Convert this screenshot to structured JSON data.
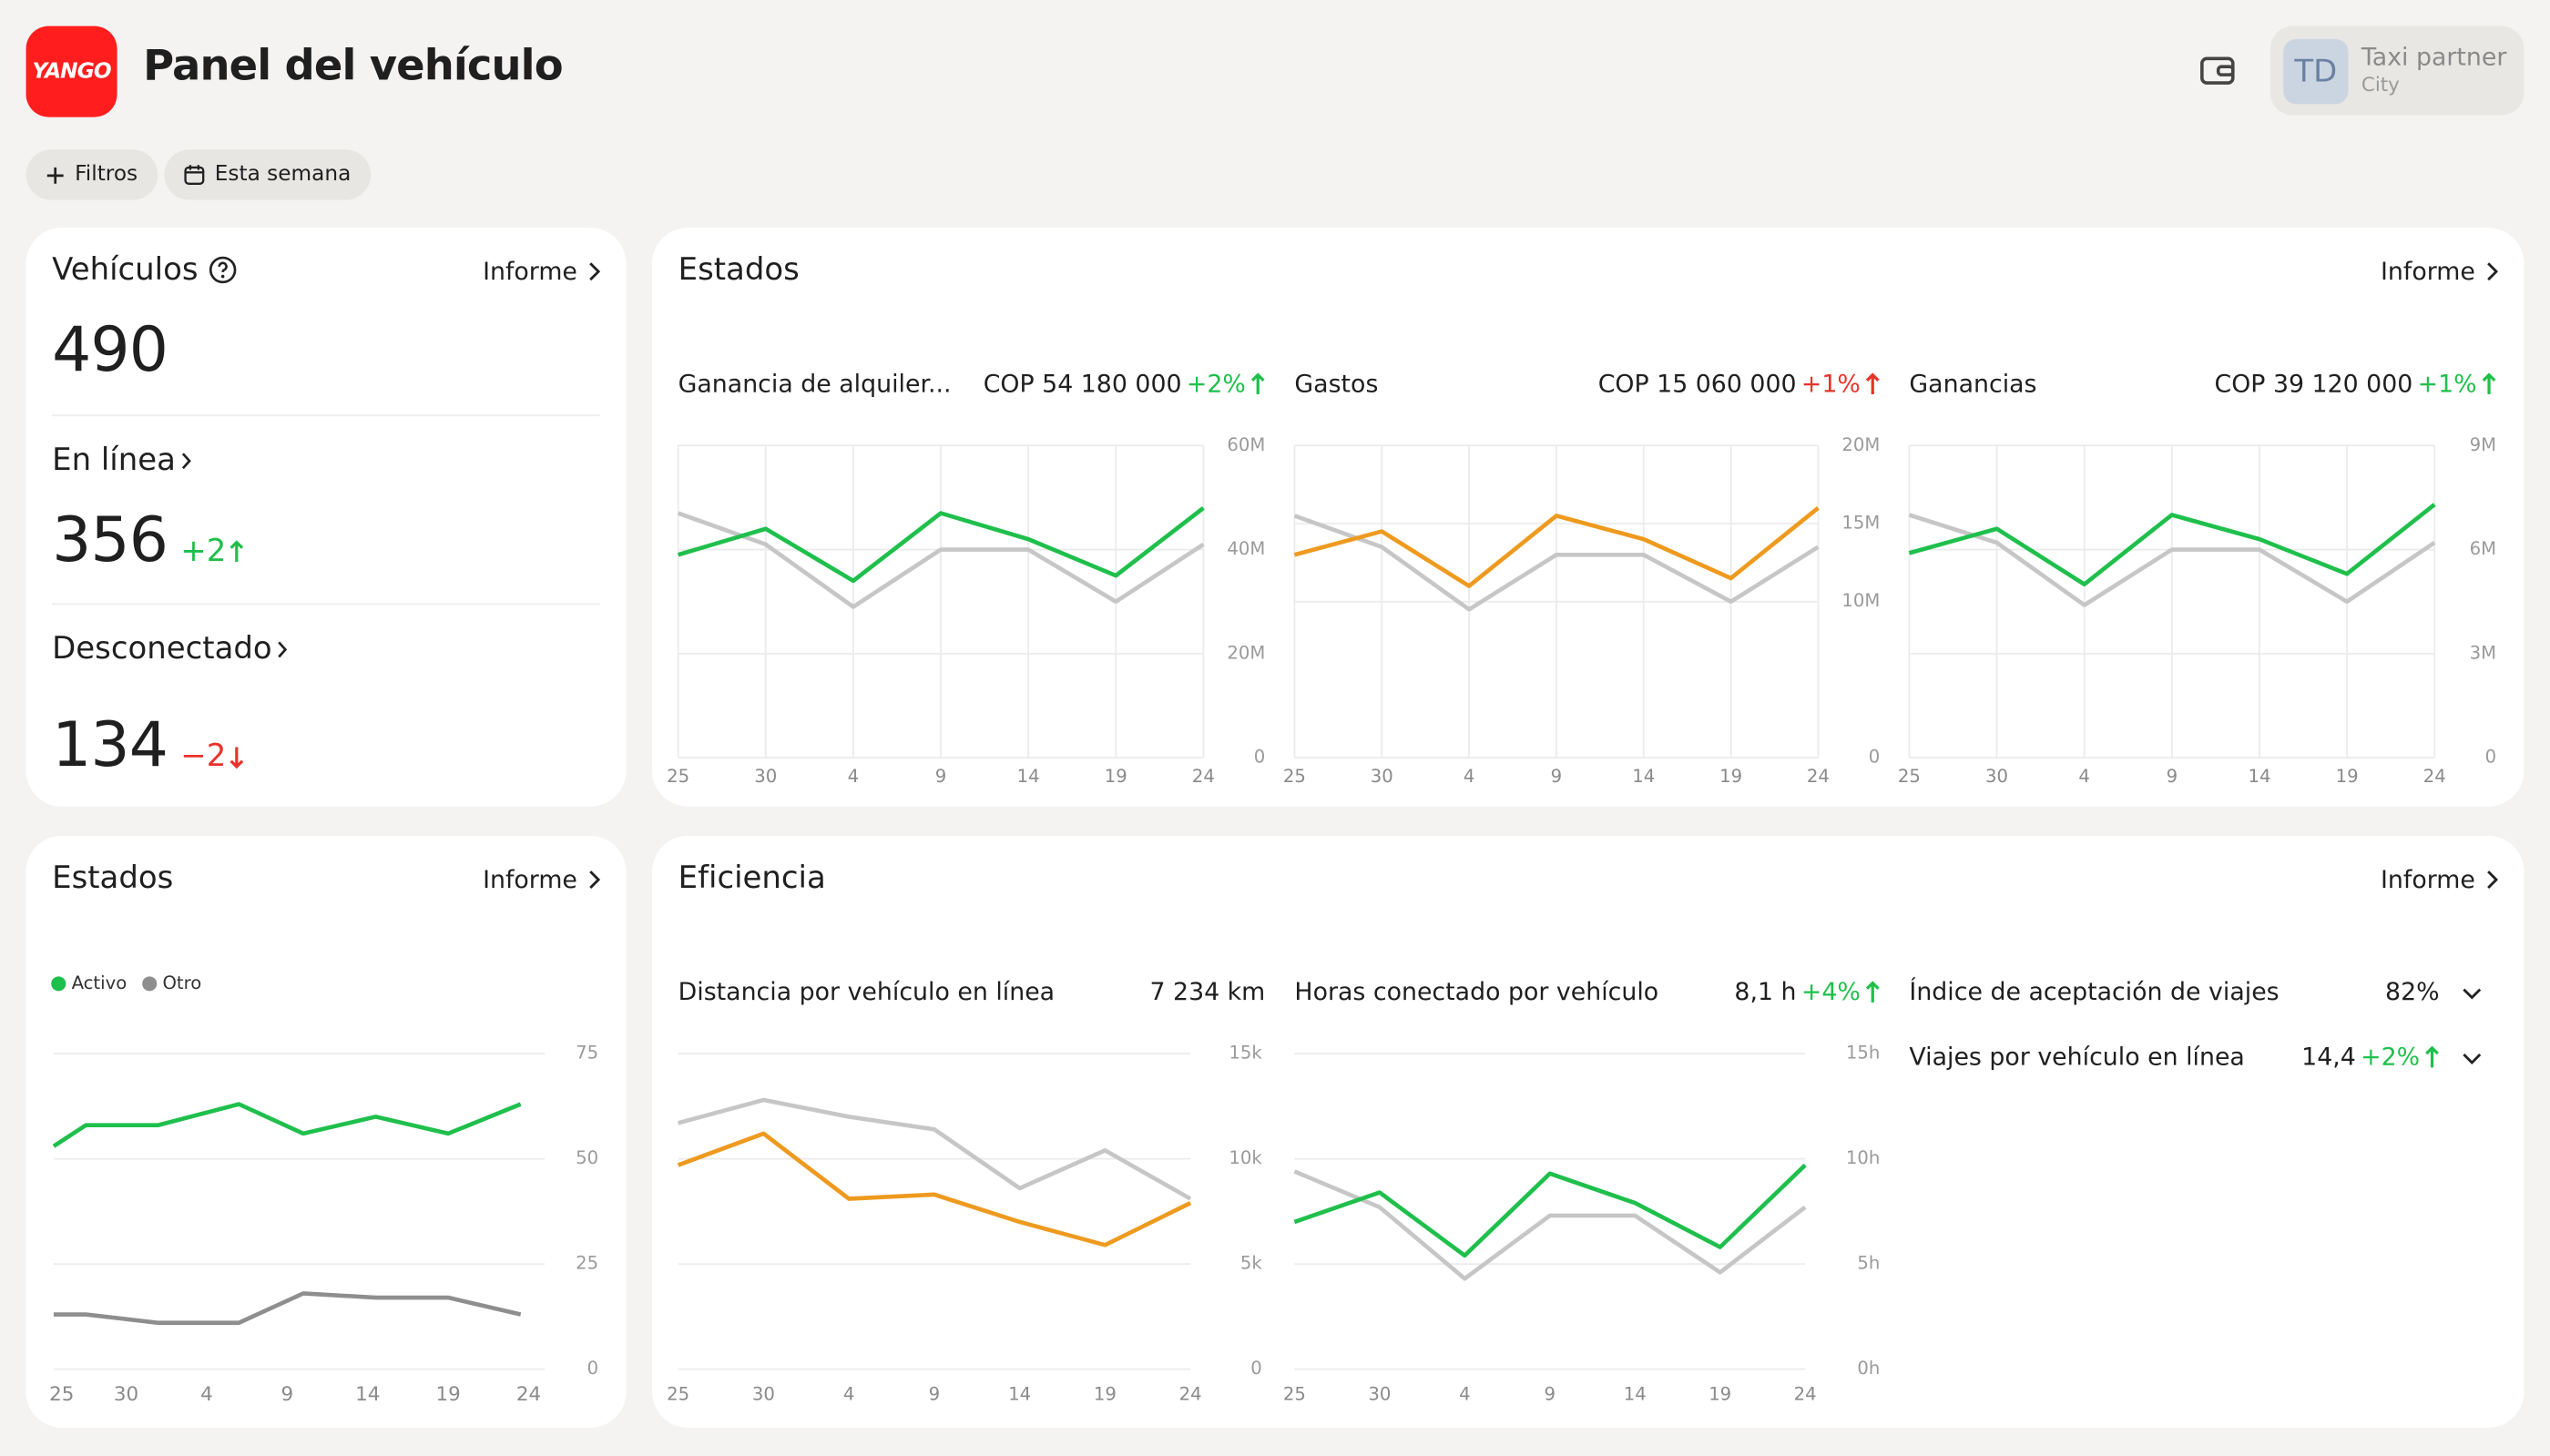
{
  "header": {
    "logo": "YANGO",
    "title": "Panel del vehículo",
    "avatar": "TD",
    "account": "Taxi partner",
    "city": "City"
  },
  "filters": [
    "Filtros",
    "Esta semana"
  ],
  "vehicles": {
    "title": "Vehículos",
    "link": "Informe",
    "total": 490,
    "online": {
      "label": "En línea",
      "value": 356,
      "change": "+2",
      "change_color": "#1fbf4c",
      "trend": "up"
    },
    "offline": {
      "label": "Desconectado",
      "value": 134,
      "change": "−2",
      "change_color": "#e8322b",
      "trend": "down"
    }
  },
  "states": {
    "title": "Estados",
    "link": "Informe",
    "metrics": [
      {
        "label": "Ganancia de alquiler...",
        "value": "COP 54 180 000",
        "change": "+2%",
        "change_color": "#1fbf4c",
        "trend": "up",
        "chart": {
          "type": "line",
          "categories": [
            "25",
            "30",
            "4",
            "9",
            "14",
            "19",
            "24"
          ],
          "grid": "both",
          "ylim": [
            0,
            60000000
          ],
          "yticks": [
            0,
            {
              "value": 20000000,
              "label": "20M"
            },
            {
              "value": 40000000,
              "label": "40M"
            },
            {
              "value": 60000000,
              "label": "60M"
            }
          ],
          "series": [
            {
              "color": "#c6c6c6",
              "values": [
                47000000,
                41000000,
                29000000,
                40000000,
                40000000,
                30000000,
                41000000
              ]
            },
            {
              "color": "#1fbf4c",
              "values": [
                39000000,
                44000000,
                34000000,
                47000000,
                42000000,
                35000000,
                48000000
              ]
            }
          ]
        }
      },
      {
        "label": "Gastos",
        "value": "COP 15 060 000",
        "change": "+1%",
        "change_color": "#e8322b",
        "trend": "up",
        "chart": {
          "type": "line",
          "categories": [
            "25",
            "30",
            "4",
            "9",
            "14",
            "19",
            "24"
          ],
          "grid": "both",
          "ylim": [
            0,
            20000000
          ],
          "yticks": [
            0,
            {
              "value": 10000000,
              "label": "10M"
            },
            {
              "value": 15000000,
              "label": "15M"
            },
            {
              "value": 20000000,
              "label": "20M"
            }
          ],
          "series": [
            {
              "color": "#c6c6c6",
              "values": [
                15500000,
                13500000,
                9500000,
                13000000,
                13000000,
                10000000,
                13500000
              ]
            },
            {
              "color": "#ee9a1f",
              "values": [
                13000000,
                14500000,
                11000000,
                15500000,
                14000000,
                11500000,
                16000000
              ]
            }
          ]
        }
      },
      {
        "label": "Ganancias",
        "value": "COP 39 120 000",
        "change": "+1%",
        "change_color": "#1fbf4c",
        "trend": "up",
        "chart": {
          "type": "line",
          "categories": [
            "25",
            "30",
            "4",
            "9",
            "14",
            "19",
            "24"
          ],
          "grid": "both",
          "ylim": [
            0,
            9000000
          ],
          "yticks": [
            0,
            {
              "value": 3000000,
              "label": "3M"
            },
            {
              "value": 6000000,
              "label": "6M"
            },
            {
              "value": 9000000,
              "label": "9M"
            }
          ],
          "series": [
            {
              "color": "#c6c6c6",
              "values": [
                7000000,
                6200000,
                4400000,
                6000000,
                6000000,
                4500000,
                6200000
              ]
            },
            {
              "color": "#1fbf4c",
              "values": [
                5900000,
                6600000,
                5000000,
                7000000,
                6300000,
                5300000,
                7300000
              ]
            }
          ]
        }
      }
    ]
  },
  "status": {
    "title": "Estados",
    "link": "Informe",
    "chart": {
      "type": "line",
      "legend": "top-left",
      "grid": "y",
      "x": [
        0.5,
        2.5,
        7,
        12,
        16,
        20.5,
        25,
        29.5
      ],
      "xlim": [
        0.5,
        31
      ],
      "xticks": [
        {
          "value": 1,
          "label": "25"
        },
        {
          "value": 5,
          "label": "30"
        },
        {
          "value": 10,
          "label": "4"
        },
        {
          "value": 15,
          "label": "9"
        },
        {
          "value": 20,
          "label": "14"
        },
        {
          "value": 25,
          "label": "19"
        },
        {
          "value": 30,
          "label": "24"
        }
      ],
      "ylim": [
        0,
        75
      ],
      "yticks": [
        0,
        25,
        50,
        75
      ],
      "series": [
        {
          "name": "Activo",
          "color": "#1fbf4c",
          "values": [
            53,
            58,
            58,
            63,
            56,
            60,
            56,
            63
          ]
        },
        {
          "name": "Otro",
          "color": "#8e8e8e",
          "values": [
            13,
            13,
            11,
            11,
            18,
            17,
            17,
            13
          ]
        }
      ]
    }
  },
  "efficiency": {
    "title": "Eficiencia",
    "link": "Informe",
    "metrics": [
      {
        "label": "Distancia por vehículo en línea",
        "value": "7 234 km",
        "chart": {
          "type": "line",
          "categories": [
            "25",
            "30",
            "4",
            "9",
            "14",
            "19",
            "24"
          ],
          "grid": "y",
          "ylim": [
            0,
            15000
          ],
          "yticks": [
            0,
            {
              "value": 5000,
              "label": "5k"
            },
            {
              "value": 10000,
              "label": "10k"
            },
            {
              "value": 15000,
              "label": "15k"
            }
          ],
          "series": [
            {
              "color": "#c6c6c6",
              "values": [
                11700,
                12800,
                12000,
                11400,
                8600,
                10400,
                8100
              ]
            },
            {
              "color": "#ee9a1f",
              "values": [
                9700,
                11200,
                8100,
                8300,
                7000,
                5900,
                7900
              ]
            }
          ]
        }
      },
      {
        "label": "Horas conectado por vehículo",
        "value": "8,1 h",
        "change": "+4%",
        "change_color": "#1fbf4c",
        "trend": "up",
        "chart": {
          "type": "line",
          "categories": [
            "25",
            "30",
            "4",
            "9",
            "14",
            "19",
            "24"
          ],
          "grid": "y",
          "ylim": [
            0,
            15
          ],
          "yticks": [
            {
              "value": 0,
              "label": "0h"
            },
            {
              "value": 5,
              "label": "5h"
            },
            {
              "value": 10,
              "label": "10h"
            },
            {
              "value": 15,
              "label": "15h"
            }
          ],
          "series": [
            {
              "color": "#c6c6c6",
              "values": [
                9.4,
                7.7,
                4.3,
                7.3,
                7.3,
                4.6,
                7.7
              ]
            },
            {
              "color": "#1fbf4c",
              "values": [
                7,
                8.4,
                5.4,
                9.3,
                7.9,
                5.8,
                9.7
              ]
            }
          ]
        }
      },
      {
        "label": "Índice de aceptación de viajes",
        "value": "82%"
      },
      {
        "label": "Viajes por vehículo en línea",
        "value": "14,4",
        "change": "+2%",
        "change_color": "#1fbf4c",
        "trend": "up"
      }
    ]
  }
}
